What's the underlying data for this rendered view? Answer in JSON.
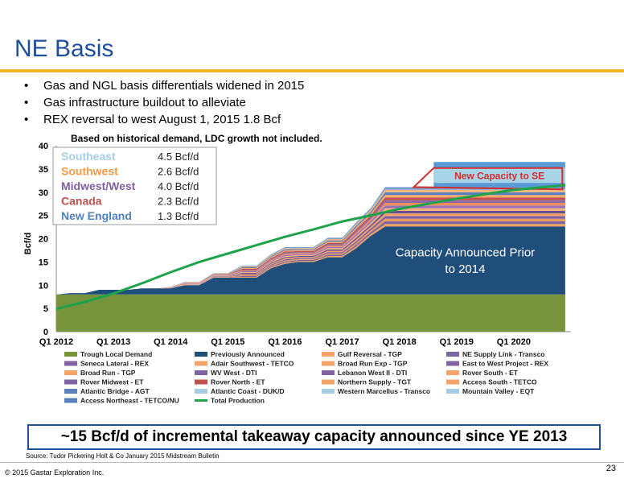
{
  "slide": {
    "title": "NE Basis",
    "bullets": [
      "Gas and NGL basis differentials widened in 2015",
      "Gas infrastructure buildout to alleviate",
      "REX reversal to west August 1, 2015 1.8 Bcf"
    ],
    "callout": "~15 Bcf/d of incremental takeaway capacity announced since YE 2013",
    "source": "Source: Tudor Pickering Holt & Co January 2015 Midstream Bulletin",
    "copyright": "© 2015 Gastar Exploration Inc.",
    "page_number": "23"
  },
  "chart_data": {
    "type": "area",
    "title": "Based on historical demand, LDC growth not included.",
    "ylabel": "Bcf/d",
    "ylim": [
      0,
      40
    ],
    "yticks": [
      0,
      5,
      10,
      15,
      20,
      25,
      30,
      35,
      40
    ],
    "xlim": [
      2012.0,
      2021.0
    ],
    "xticks": [
      {
        "x": 2012.0,
        "label": "Q1 2012"
      },
      {
        "x": 2013.0,
        "label": "Q1 2013"
      },
      {
        "x": 2014.0,
        "label": "Q1 2014"
      },
      {
        "x": 2015.0,
        "label": "Q1 2015"
      },
      {
        "x": 2016.0,
        "label": "Q1 2016"
      },
      {
        "x": 2017.0,
        "label": "Q1 2017"
      },
      {
        "x": 2018.0,
        "label": "Q1 2018"
      },
      {
        "x": 2019.0,
        "label": "Q1 2019"
      },
      {
        "x": 2020.0,
        "label": "Q1 2020"
      }
    ],
    "trough_local_demand": {
      "name": "Trough Local Demand",
      "color": "#77933c",
      "value": 8
    },
    "previously_announced": {
      "name": "Previously Announced",
      "color": "#1f4e7a",
      "points": [
        [
          2012.0,
          0
        ],
        [
          2012.25,
          0.3
        ],
        [
          2012.5,
          0.3
        ],
        [
          2012.75,
          1.0
        ],
        [
          2013.0,
          1.0
        ],
        [
          2013.25,
          1.0
        ],
        [
          2013.5,
          1.3
        ],
        [
          2013.75,
          1.3
        ],
        [
          2014.0,
          1.3
        ],
        [
          2014.25,
          2.0
        ],
        [
          2014.5,
          2.0
        ],
        [
          2014.75,
          3.6
        ],
        [
          2015.0,
          3.6
        ],
        [
          2015.25,
          3.6
        ],
        [
          2015.5,
          3.6
        ],
        [
          2015.75,
          5.6
        ],
        [
          2016.0,
          6.6
        ],
        [
          2016.25,
          7.0
        ],
        [
          2016.5,
          7.0
        ],
        [
          2016.75,
          8.0
        ],
        [
          2017.0,
          8.0
        ],
        [
          2017.25,
          10.0
        ],
        [
          2017.5,
          12.6
        ],
        [
          2017.75,
          14.6
        ],
        [
          2020.9,
          14.6
        ]
      ]
    },
    "announced_projects": {
      "colors": [
        "#e8a063",
        "#8064a2",
        "#e89a5a",
        "#7f5fa0",
        "#f4a46a",
        "#6a4f90",
        "#f0b07a",
        "#9a6fba",
        "#f28e5a",
        "#8a6aa8",
        "#c0504d",
        "#f6a86a",
        "#5a7fbf",
        "#f4b87e",
        "#7d9fd0"
      ],
      "points": [
        [
          2012.0,
          0
        ],
        [
          2013.75,
          0
        ],
        [
          2014.25,
          0.7
        ],
        [
          2014.5,
          0.7
        ],
        [
          2014.75,
          1.0
        ],
        [
          2015.0,
          1.0
        ],
        [
          2015.25,
          2.6
        ],
        [
          2015.5,
          2.6
        ],
        [
          2015.75,
          3.0
        ],
        [
          2016.0,
          3.6
        ],
        [
          2016.25,
          3.2
        ],
        [
          2016.5,
          3.2
        ],
        [
          2016.75,
          4.2
        ],
        [
          2017.0,
          4.2
        ],
        [
          2017.25,
          5.6
        ],
        [
          2017.5,
          6.0
        ],
        [
          2017.75,
          8.5
        ],
        [
          2020.9,
          8.5
        ]
      ]
    },
    "new_capacity_to_se": {
      "color": "#5b9bd5",
      "top_color": "#a8d4e8",
      "start": 2018.6,
      "end": 2020.9,
      "from": 31,
      "to": 36.5
    },
    "total_production": {
      "name": "Total Production",
      "color": "#1ea34a",
      "points": [
        [
          2012.0,
          4.9
        ],
        [
          2012.5,
          6.4
        ],
        [
          2013.0,
          8.2
        ],
        [
          2013.5,
          10.4
        ],
        [
          2014.0,
          12.8
        ],
        [
          2014.5,
          15.0
        ],
        [
          2015.0,
          16.8
        ],
        [
          2015.5,
          18.6
        ],
        [
          2016.0,
          20.4
        ],
        [
          2016.5,
          22.0
        ],
        [
          2017.0,
          23.7
        ],
        [
          2017.5,
          25.0
        ],
        [
          2018.0,
          26.4
        ],
        [
          2018.5,
          27.5
        ],
        [
          2019.0,
          28.6
        ],
        [
          2019.5,
          29.6
        ],
        [
          2020.0,
          30.5
        ],
        [
          2020.9,
          31.5
        ]
      ]
    },
    "region_table": [
      {
        "name": "Southeast",
        "value": "4.5 Bcf/d",
        "color": "#a6cde3"
      },
      {
        "name": "Southwest",
        "value": "2.6 Bcf/d",
        "color": "#f39a47"
      },
      {
        "name": "Midwest/West",
        "value": "4.0 Bcf/d",
        "color": "#7f5fa0"
      },
      {
        "name": "Canada",
        "value": "2.3 Bcf/d",
        "color": "#c0504d"
      },
      {
        "name": "New England",
        "value": "1.3 Bcf/d",
        "color": "#4f81bd"
      }
    ],
    "annotations": {
      "new_capacity_label": "New Capacity to SE",
      "prior_capacity_label_line1": "Capacity Announced Prior",
      "prior_capacity_label_line2": "to 2014"
    },
    "legend": [
      {
        "name": "Trough Local Demand",
        "color": "#77933c"
      },
      {
        "name": "Previously Announced",
        "color": "#1f4e7a"
      },
      {
        "name": "Gulf Reversal - TGP",
        "color": "#f4a46a"
      },
      {
        "name": "NE Supply Link - Transco",
        "color": "#8064a2"
      },
      {
        "name": "Seneca Lateral - REX",
        "color": "#8064a2"
      },
      {
        "name": "Adair Southwest - TETCO",
        "color": "#f4a46a"
      },
      {
        "name": "Broad Run Exp - TGP",
        "color": "#f4a46a"
      },
      {
        "name": "East to West Project - REX",
        "color": "#8064a2"
      },
      {
        "name": "Broad Run - TGP",
        "color": "#f4a46a"
      },
      {
        "name": "WV West - DTI",
        "color": "#8064a2"
      },
      {
        "name": "Lebanon West II - DTI",
        "color": "#8064a2"
      },
      {
        "name": "Rover South - ET",
        "color": "#f4a46a"
      },
      {
        "name": "Rover Midwest - ET",
        "color": "#8064a2"
      },
      {
        "name": "Rover North - ET",
        "color": "#c0504d"
      },
      {
        "name": "Northern Supply - TGT",
        "color": "#f4a46a"
      },
      {
        "name": "Access South - TETCO",
        "color": "#f4a46a"
      },
      {
        "name": "Atlantic Bridge - AGT",
        "color": "#5b7fbf"
      },
      {
        "name": "Atlantic Coast - DUK/D",
        "color": "#a6cde3"
      },
      {
        "name": "Western Marcellus - Transco",
        "color": "#a6cde3"
      },
      {
        "name": "Mountain Valley - EQT",
        "color": "#a6cde3"
      },
      {
        "name": "Access Northeast - TETCO/NU",
        "color": "#5b7fbf"
      },
      {
        "name": "Total Production",
        "color": "#1ea34a",
        "line": true
      }
    ]
  }
}
